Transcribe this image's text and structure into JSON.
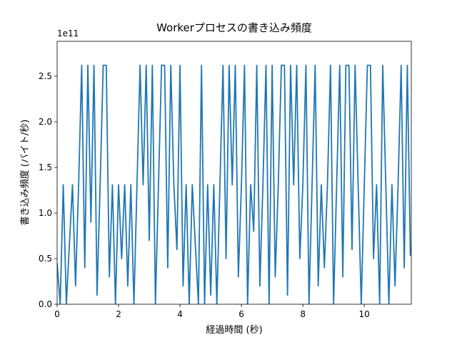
{
  "chart_data": {
    "type": "line",
    "title": "Workerプロセスの書き込み頻度",
    "x_label": "経過時間 (秒)",
    "y_label": "書き込み頻度 (バイト/秒)",
    "y_offset_label": "1e11",
    "xlim": [
      0,
      11.53
    ],
    "ylim": [
      0,
      288300000000.0
    ],
    "xticks": [
      0,
      2,
      4,
      6,
      8,
      10
    ],
    "yticks": [
      {
        "value": 0,
        "label": "0.0"
      },
      {
        "value": 50000000000.0,
        "label": "0.5"
      },
      {
        "value": 100000000000.0,
        "label": "1.0"
      },
      {
        "value": 150000000000.0,
        "label": "1.5"
      },
      {
        "value": 200000000000.0,
        "label": "2.0"
      },
      {
        "value": 250000000000.0,
        "label": "2.5"
      }
    ],
    "grid": false,
    "x": [
      0,
      0.1,
      0.2,
      0.3,
      0.4,
      0.5,
      0.6,
      0.7,
      0.8,
      0.9,
      1,
      1.1,
      1.2,
      1.3,
      1.4,
      1.5,
      1.6,
      1.7,
      1.8,
      1.9,
      2,
      2.1,
      2.2,
      2.3,
      2.4,
      2.5,
      2.6,
      2.7,
      2.8,
      2.9,
      3,
      3.1,
      3.2,
      3.3,
      3.4,
      3.5,
      3.6,
      3.7,
      3.8,
      3.9,
      4,
      4.1,
      4.2,
      4.3,
      4.4,
      4.5,
      4.6,
      4.7,
      4.8,
      4.9,
      5,
      5.1,
      5.2,
      5.3,
      5.4,
      5.5,
      5.6,
      5.7,
      5.8,
      5.9,
      6,
      6.1,
      6.2,
      6.3,
      6.4,
      6.5,
      6.6,
      6.7,
      6.8,
      6.9,
      7,
      7.1,
      7.2,
      7.3,
      7.4,
      7.5,
      7.6,
      7.7,
      7.8,
      7.9,
      8,
      8.1,
      8.2,
      8.3,
      8.4,
      8.5,
      8.6,
      8.7,
      8.8,
      8.9,
      9,
      9.1,
      9.2,
      9.3,
      9.4,
      9.5,
      9.6,
      9.7,
      9.8,
      9.9,
      10,
      10.1,
      10.2,
      10.3,
      10.4,
      10.5,
      10.6,
      10.7,
      10.8,
      10.9,
      11,
      11.1,
      11.2,
      11.3,
      11.4,
      11.5
    ],
    "series": [
      {
        "color": "#1f77b4",
        "values": [
          45000000000.0,
          0,
          131000000000.0,
          0,
          66000000000.0,
          131000000000.0,
          20000000000.0,
          131000000000.0,
          262000000000.0,
          40000000000.0,
          262000000000.0,
          90000000000.0,
          262000000000.0,
          10000000000.0,
          131000000000.0,
          262000000000.0,
          262000000000.0,
          30000000000.0,
          131000000000.0,
          0,
          131000000000.0,
          50000000000.0,
          131000000000.0,
          20000000000.0,
          131000000000.0,
          0,
          131000000000.0,
          262000000000.0,
          131000000000.0,
          262000000000.0,
          70000000000.0,
          262000000000.0,
          0,
          131000000000.0,
          262000000000.0,
          262000000000.0,
          40000000000.0,
          262000000000.0,
          131000000000.0,
          60000000000.0,
          262000000000.0,
          20000000000.0,
          131000000000.0,
          0,
          131000000000.0,
          65000000000.0,
          0,
          262000000000.0,
          0,
          131000000000.0,
          10000000000.0,
          131000000000.0,
          0,
          131000000000.0,
          262000000000.0,
          50000000000.0,
          262000000000.0,
          131000000000.0,
          262000000000.0,
          30000000000.0,
          131000000000.0,
          262000000000.0,
          0,
          131000000000.0,
          80000000000.0,
          262000000000.0,
          20000000000.0,
          131000000000.0,
          262000000000.0,
          0,
          262000000000.0,
          30000000000.0,
          131000000000.0,
          262000000000.0,
          262000000000.0,
          10000000000.0,
          262000000000.0,
          131000000000.0,
          262000000000.0,
          50000000000.0,
          131000000000.0,
          262000000000.0,
          0,
          131000000000.0,
          262000000000.0,
          20000000000.0,
          131000000000.0,
          40000000000.0,
          131000000000.0,
          262000000000.0,
          0,
          131000000000.0,
          262000000000.0,
          30000000000.0,
          262000000000.0,
          262000000000.0,
          60000000000.0,
          262000000000.0,
          131000000000.0,
          0,
          131000000000.0,
          262000000000.0,
          262000000000.0,
          50000000000.0,
          131000000000.0,
          0,
          262000000000.0,
          131000000000.0,
          0,
          131000000000.0,
          20000000000.0,
          131000000000.0,
          262000000000.0,
          40000000000.0,
          262000000000.0,
          53000000000.0
        ]
      }
    ]
  }
}
